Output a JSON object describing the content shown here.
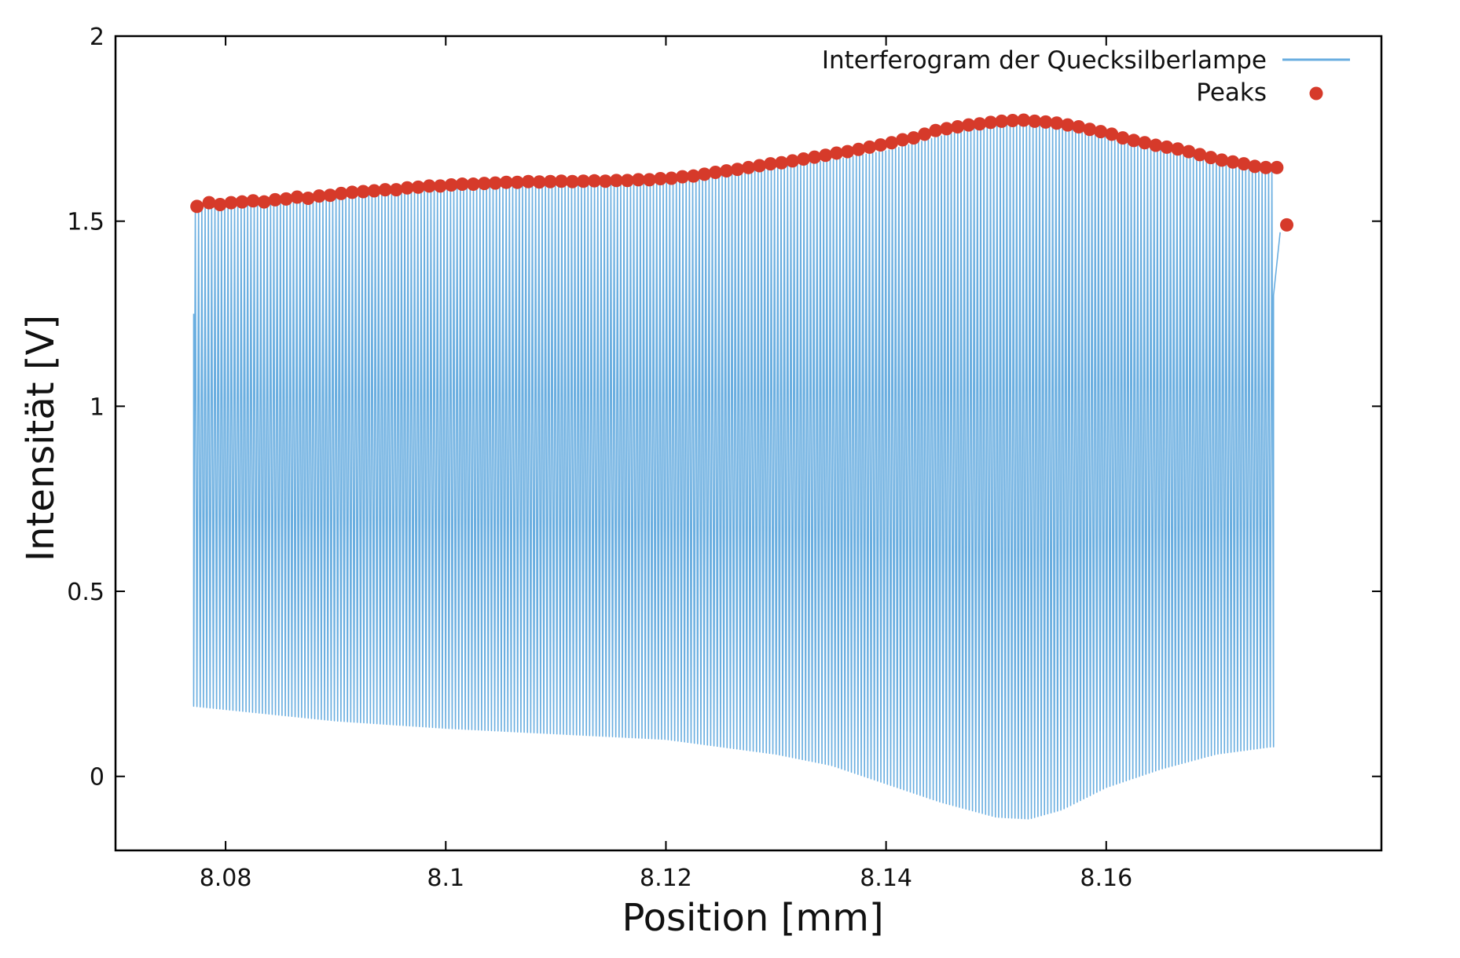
{
  "chart_data": {
    "type": "line",
    "title": "",
    "xlabel": "Position [mm]",
    "ylabel": "Intensität [V]",
    "xlim": [
      8.07,
      8.185
    ],
    "ylim": [
      -0.2,
      2.0
    ],
    "xticks": [
      {
        "value": 8.08,
        "label": "8.08"
      },
      {
        "value": 8.1,
        "label": "8.1"
      },
      {
        "value": 8.12,
        "label": "8.12"
      },
      {
        "value": 8.14,
        "label": "8.14"
      },
      {
        "value": 8.16,
        "label": "8.16"
      }
    ],
    "yticks": [
      {
        "value": 0,
        "label": "0"
      },
      {
        "value": 0.5,
        "label": "0.5"
      },
      {
        "value": 1.0,
        "label": "1"
      },
      {
        "value": 1.5,
        "label": "1.5"
      },
      {
        "value": 2.0,
        "label": "2"
      }
    ],
    "grid": false,
    "legend_position": "top-right",
    "series": [
      {
        "name": "Interferogram der Quecksilberlampe",
        "style": "line",
        "color": "#6aaee0",
        "x_range": [
          8.0771,
          8.1752
        ],
        "oscillation_count": 330,
        "upper_envelope": [
          [
            8.077,
            1.54
          ],
          [
            8.085,
            1.565
          ],
          [
            8.095,
            1.585
          ],
          [
            8.105,
            1.6
          ],
          [
            8.115,
            1.605
          ],
          [
            8.12,
            1.61
          ],
          [
            8.125,
            1.625
          ],
          [
            8.13,
            1.645
          ],
          [
            8.135,
            1.665
          ],
          [
            8.14,
            1.69
          ],
          [
            8.145,
            1.73
          ],
          [
            8.15,
            1.765
          ],
          [
            8.153,
            1.77
          ],
          [
            8.156,
            1.76
          ],
          [
            8.16,
            1.74
          ],
          [
            8.165,
            1.7
          ],
          [
            8.17,
            1.67
          ],
          [
            8.175,
            1.645
          ]
        ],
        "lower_envelope": [
          [
            8.077,
            0.19
          ],
          [
            8.09,
            0.15
          ],
          [
            8.1,
            0.13
          ],
          [
            8.11,
            0.115
          ],
          [
            8.12,
            0.1
          ],
          [
            8.13,
            0.06
          ],
          [
            8.135,
            0.03
          ],
          [
            8.14,
            -0.02
          ],
          [
            8.145,
            -0.07
          ],
          [
            8.15,
            -0.11
          ],
          [
            8.153,
            -0.115
          ],
          [
            8.156,
            -0.09
          ],
          [
            8.16,
            -0.03
          ],
          [
            8.165,
            0.02
          ],
          [
            8.17,
            0.06
          ],
          [
            8.175,
            0.08
          ]
        ],
        "end_segment": [
          [
            8.0771,
            1.25
          ],
          [
            8.1752,
            1.3
          ],
          [
            8.1758,
            1.47
          ]
        ]
      },
      {
        "name": "Peaks",
        "style": "points",
        "color": "#d63a2a",
        "points": [
          [
            8.0774,
            1.54
          ],
          [
            8.0785,
            1.55
          ],
          [
            8.0795,
            1.545
          ],
          [
            8.0805,
            1.55
          ],
          [
            8.0815,
            1.552
          ],
          [
            8.0825,
            1.555
          ],
          [
            8.0835,
            1.552
          ],
          [
            8.0845,
            1.558
          ],
          [
            8.0855,
            1.56
          ],
          [
            8.0865,
            1.565
          ],
          [
            8.0875,
            1.562
          ],
          [
            8.0885,
            1.568
          ],
          [
            8.0895,
            1.57
          ],
          [
            8.0905,
            1.575
          ],
          [
            8.0915,
            1.578
          ],
          [
            8.0925,
            1.58
          ],
          [
            8.0935,
            1.582
          ],
          [
            8.0945,
            1.585
          ],
          [
            8.0955,
            1.585
          ],
          [
            8.0965,
            1.59
          ],
          [
            8.0975,
            1.592
          ],
          [
            8.0985,
            1.595
          ],
          [
            8.0995,
            1.595
          ],
          [
            8.1005,
            1.598
          ],
          [
            8.1015,
            1.6
          ],
          [
            8.1025,
            1.6
          ],
          [
            8.1035,
            1.602
          ],
          [
            8.1045,
            1.603
          ],
          [
            8.1055,
            1.605
          ],
          [
            8.1065,
            1.605
          ],
          [
            8.1075,
            1.607
          ],
          [
            8.1085,
            1.606
          ],
          [
            8.1095,
            1.607
          ],
          [
            8.1105,
            1.608
          ],
          [
            8.1115,
            1.607
          ],
          [
            8.1125,
            1.608
          ],
          [
            8.1135,
            1.609
          ],
          [
            8.1145,
            1.608
          ],
          [
            8.1155,
            1.61
          ],
          [
            8.1165,
            1.61
          ],
          [
            8.1175,
            1.612
          ],
          [
            8.1185,
            1.612
          ],
          [
            8.1195,
            1.615
          ],
          [
            8.1205,
            1.616
          ],
          [
            8.1215,
            1.62
          ],
          [
            8.1225,
            1.622
          ],
          [
            8.1235,
            1.627
          ],
          [
            8.1245,
            1.632
          ],
          [
            8.1255,
            1.636
          ],
          [
            8.1265,
            1.64
          ],
          [
            8.1275,
            1.645
          ],
          [
            8.1285,
            1.65
          ],
          [
            8.1295,
            1.655
          ],
          [
            8.1305,
            1.658
          ],
          [
            8.1315,
            1.663
          ],
          [
            8.1325,
            1.668
          ],
          [
            8.1335,
            1.673
          ],
          [
            8.1345,
            1.678
          ],
          [
            8.1355,
            1.684
          ],
          [
            8.1365,
            1.688
          ],
          [
            8.1375,
            1.694
          ],
          [
            8.1385,
            1.7
          ],
          [
            8.1395,
            1.706
          ],
          [
            8.1405,
            1.712
          ],
          [
            8.1415,
            1.72
          ],
          [
            8.1425,
            1.725
          ],
          [
            8.1435,
            1.735
          ],
          [
            8.1445,
            1.745
          ],
          [
            8.1455,
            1.75
          ],
          [
            8.1465,
            1.755
          ],
          [
            8.1475,
            1.76
          ],
          [
            8.1485,
            1.763
          ],
          [
            8.1495,
            1.767
          ],
          [
            8.1505,
            1.77
          ],
          [
            8.1515,
            1.772
          ],
          [
            8.1525,
            1.773
          ],
          [
            8.1535,
            1.77
          ],
          [
            8.1545,
            1.768
          ],
          [
            8.1555,
            1.765
          ],
          [
            8.1565,
            1.76
          ],
          [
            8.1575,
            1.755
          ],
          [
            8.1585,
            1.748
          ],
          [
            8.1595,
            1.742
          ],
          [
            8.1605,
            1.735
          ],
          [
            8.1615,
            1.725
          ],
          [
            8.1625,
            1.718
          ],
          [
            8.1635,
            1.712
          ],
          [
            8.1645,
            1.705
          ],
          [
            8.1655,
            1.7
          ],
          [
            8.1665,
            1.695
          ],
          [
            8.1675,
            1.688
          ],
          [
            8.1685,
            1.68
          ],
          [
            8.1695,
            1.672
          ],
          [
            8.1705,
            1.665
          ],
          [
            8.1715,
            1.66
          ],
          [
            8.1725,
            1.655
          ],
          [
            8.1735,
            1.648
          ],
          [
            8.1745,
            1.645
          ],
          [
            8.1755,
            1.645
          ],
          [
            8.1764,
            1.49
          ]
        ]
      }
    ],
    "colors": {
      "line": "#6aaee0",
      "peaks": "#d63a2a",
      "axis": "#000000"
    }
  }
}
